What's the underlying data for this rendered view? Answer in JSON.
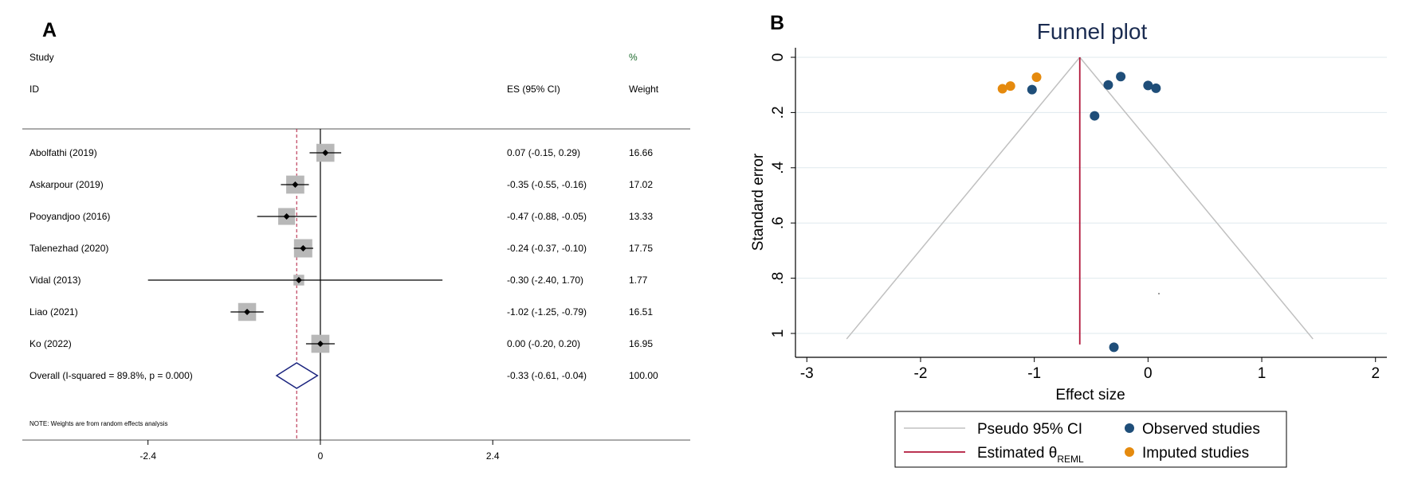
{
  "panel_a_letter": "A",
  "panel_b_letter": "B",
  "chart_data": [
    {
      "type": "forest",
      "header": {
        "study": "Study",
        "id": "ID",
        "es": "ES (95% CI)",
        "pct": "%",
        "weight": "Weight"
      },
      "studies": [
        {
          "name": "Abolfathi (2019)",
          "es": 0.07,
          "lo": -0.15,
          "hi": 0.29,
          "ci_text": "0.07 (-0.15, 0.29)",
          "weight": 16.66,
          "weight_text": "16.66"
        },
        {
          "name": "Askarpour (2019)",
          "es": -0.35,
          "lo": -0.55,
          "hi": -0.16,
          "ci_text": "-0.35 (-0.55, -0.16)",
          "weight": 17.02,
          "weight_text": "17.02"
        },
        {
          "name": "Pooyandjoo (2016)",
          "es": -0.47,
          "lo": -0.88,
          "hi": -0.05,
          "ci_text": "-0.47 (-0.88, -0.05)",
          "weight": 13.33,
          "weight_text": "13.33"
        },
        {
          "name": "Talenezhad (2020)",
          "es": -0.24,
          "lo": -0.37,
          "hi": -0.1,
          "ci_text": "-0.24 (-0.37, -0.10)",
          "weight": 17.75,
          "weight_text": "17.75"
        },
        {
          "name": "Vidal (2013)",
          "es": -0.3,
          "lo": -2.4,
          "hi": 1.7,
          "ci_text": "-0.30 (-2.40, 1.70)",
          "weight": 1.77,
          "weight_text": "1.77"
        },
        {
          "name": "Liao (2021)",
          "es": -1.02,
          "lo": -1.25,
          "hi": -0.79,
          "ci_text": "-1.02 (-1.25, -0.79)",
          "weight": 16.51,
          "weight_text": "16.51"
        },
        {
          "name": "Ko (2022)",
          "es": 0.0,
          "lo": -0.2,
          "hi": 0.2,
          "ci_text": "0.00 (-0.20, 0.20)",
          "weight": 16.95,
          "weight_text": "16.95"
        }
      ],
      "overall": {
        "label": "Overall  (I-squared = 89.8%, p = 0.000)",
        "es": -0.33,
        "lo": -0.61,
        "hi": -0.04,
        "ci_text": "-0.33 (-0.61, -0.04)",
        "weight_text": "100.00"
      },
      "note": "NOTE: Weights are from random effects analysis",
      "x_ticks": [
        -2.4,
        0,
        2.4
      ],
      "x_tick_labels": [
        "-2.4",
        "0",
        "2.4"
      ],
      "xlim": [
        -4.15,
        5.15
      ]
    },
    {
      "type": "scatter",
      "title": "Funnel plot",
      "xlabel": "Effect size",
      "ylabel": "Standard error",
      "xlim": [
        -3.1,
        2.1
      ],
      "ylim": [
        0,
        1.05
      ],
      "x_ticks": [
        -3,
        -2,
        -1,
        0,
        1,
        2
      ],
      "x_tick_labels": [
        "-3",
        "-2",
        "-1",
        "0",
        "1",
        "2"
      ],
      "y_ticks": [
        0,
        0.2,
        0.4,
        0.6,
        0.8,
        1
      ],
      "y_tick_labels": [
        "0",
        ".2",
        ".4",
        ".6",
        ".8",
        "1"
      ],
      "theta": -0.6,
      "pseudo_ci": {
        "apex_se": 0,
        "bottom_se": 1.02,
        "left_x": -2.65,
        "right_x": 1.45
      },
      "series": [
        {
          "name": "Observed studies",
          "color": "#1f4e79",
          "points": [
            {
              "x": 0.07,
              "y": 0.112
            },
            {
              "x": -0.35,
              "y": 0.1
            },
            {
              "x": -0.47,
              "y": 0.212
            },
            {
              "x": -0.24,
              "y": 0.07
            },
            {
              "x": -0.3,
              "y": 1.05
            },
            {
              "x": -1.02,
              "y": 0.117
            },
            {
              "x": 0.0,
              "y": 0.102
            }
          ]
        },
        {
          "name": "Imputed studies",
          "color": "#e58a0e",
          "points": [
            {
              "x": -1.28,
              "y": 0.114
            },
            {
              "x": -1.21,
              "y": 0.104
            },
            {
              "x": -0.98,
              "y": 0.072
            }
          ]
        }
      ],
      "legend": {
        "ci_label": "Pseudo 95% CI",
        "theta_label_main": "Estimated θ",
        "theta_label_sub": "REML",
        "observed_label": "Observed studies",
        "imputed_label": "Imputed studies"
      },
      "colors": {
        "theta_line": "#b0173a",
        "ci_line": "#c0c0c0",
        "grid": "#dfe9ee"
      }
    }
  ]
}
